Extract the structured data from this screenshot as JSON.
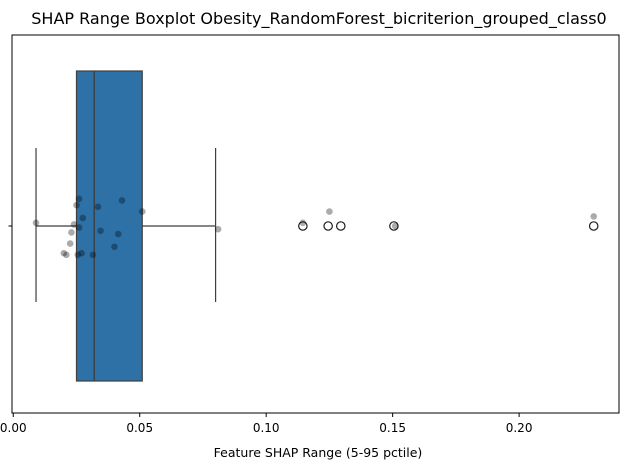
{
  "chart_data": {
    "type": "boxplot",
    "title": "SHAP Range Boxplot Obesity_RandomForest_bicriterion_grouped_class0",
    "xlabel": "Feature SHAP Range (5-95 pctile)",
    "ylabel": "",
    "xlim": [
      -0.0005,
      0.2395
    ],
    "xticks": [
      0.0,
      0.05,
      0.1,
      0.15,
      0.2
    ],
    "xtick_labels": [
      "0.00",
      "0.05",
      "0.10",
      "0.15",
      "0.20"
    ],
    "grid": false,
    "box": {
      "whisker_low": 0.009,
      "q1": 0.025,
      "median": 0.032,
      "q3": 0.051,
      "whisker_high": 0.08,
      "color": "#2e71a7"
    },
    "outliers": [
      0.1145,
      0.1245,
      0.1295,
      0.1505,
      0.2295
    ],
    "strip_points": [
      {
        "x": 0.009,
        "y": 0.02
      },
      {
        "x": 0.02,
        "y": -0.17
      },
      {
        "x": 0.021,
        "y": -0.18
      },
      {
        "x": 0.0225,
        "y": -0.11
      },
      {
        "x": 0.023,
        "y": -0.04
      },
      {
        "x": 0.024,
        "y": 0.01
      },
      {
        "x": 0.025,
        "y": 0.13
      },
      {
        "x": 0.0255,
        "y": -0.18
      },
      {
        "x": 0.026,
        "y": 0.17
      },
      {
        "x": 0.026,
        "y": -0.01
      },
      {
        "x": 0.027,
        "y": -0.17
      },
      {
        "x": 0.0275,
        "y": 0.05
      },
      {
        "x": 0.0315,
        "y": -0.18
      },
      {
        "x": 0.0335,
        "y": 0.12
      },
      {
        "x": 0.0345,
        "y": -0.03
      },
      {
        "x": 0.04,
        "y": -0.13
      },
      {
        "x": 0.0415,
        "y": -0.05
      },
      {
        "x": 0.043,
        "y": 0.16
      },
      {
        "x": 0.051,
        "y": 0.09
      },
      {
        "x": 0.081,
        "y": -0.02
      },
      {
        "x": 0.1145,
        "y": 0.02
      },
      {
        "x": 0.125,
        "y": 0.09
      },
      {
        "x": 0.151,
        "y": 0.0
      },
      {
        "x": 0.2295,
        "y": 0.06
      }
    ]
  }
}
